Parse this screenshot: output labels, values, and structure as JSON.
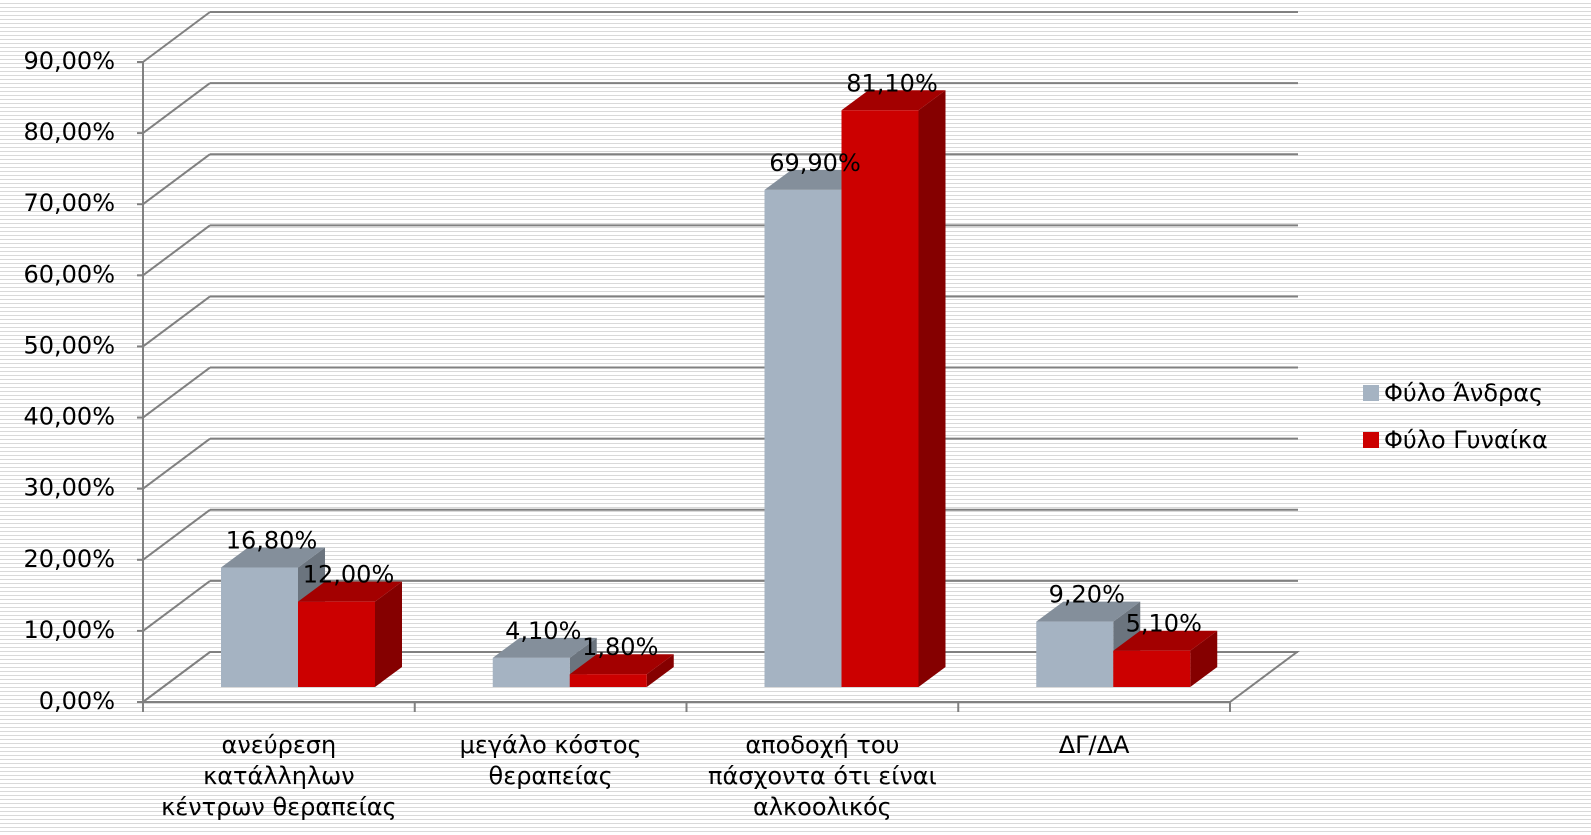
{
  "chart_data": {
    "type": "bar3d",
    "categories": [
      "ανεύρεση κατάλληλων κέντρων θεραπείας",
      "μεγάλο κόστος θεραπείας",
      "αποδοχή του πάσχοντα ότι είναι αλκοολικός",
      "ΔΓ/ΔΑ"
    ],
    "series": [
      {
        "name": "Φύλο Άνδρας",
        "color": "#a5b3c2",
        "values": [
          16.8,
          4.1,
          69.9,
          9.2
        ],
        "value_labels": [
          "16,80%",
          "4,10%",
          "69,90%",
          "9,20%"
        ]
      },
      {
        "name": "Φύλο Γυναίκα",
        "color": "#cc0000",
        "values": [
          12.0,
          1.8,
          81.1,
          5.1
        ],
        "value_labels": [
          "12,00%",
          "1,80%",
          "81,10%",
          "5,10%"
        ]
      }
    ],
    "ylim": [
      0,
      90
    ],
    "yticks": [
      {
        "value": 0,
        "label": "0,00%"
      },
      {
        "value": 10,
        "label": "10,00%"
      },
      {
        "value": 20,
        "label": "20,00%"
      },
      {
        "value": 30,
        "label": "30,00%"
      },
      {
        "value": 40,
        "label": "40,00%"
      },
      {
        "value": 50,
        "label": "50,00%"
      },
      {
        "value": 60,
        "label": "60,00%"
      },
      {
        "value": 70,
        "label": "70,00%"
      },
      {
        "value": 80,
        "label": "80,00%"
      },
      {
        "value": 90,
        "label": "90,00%"
      }
    ],
    "grid": true,
    "legend": "right"
  }
}
